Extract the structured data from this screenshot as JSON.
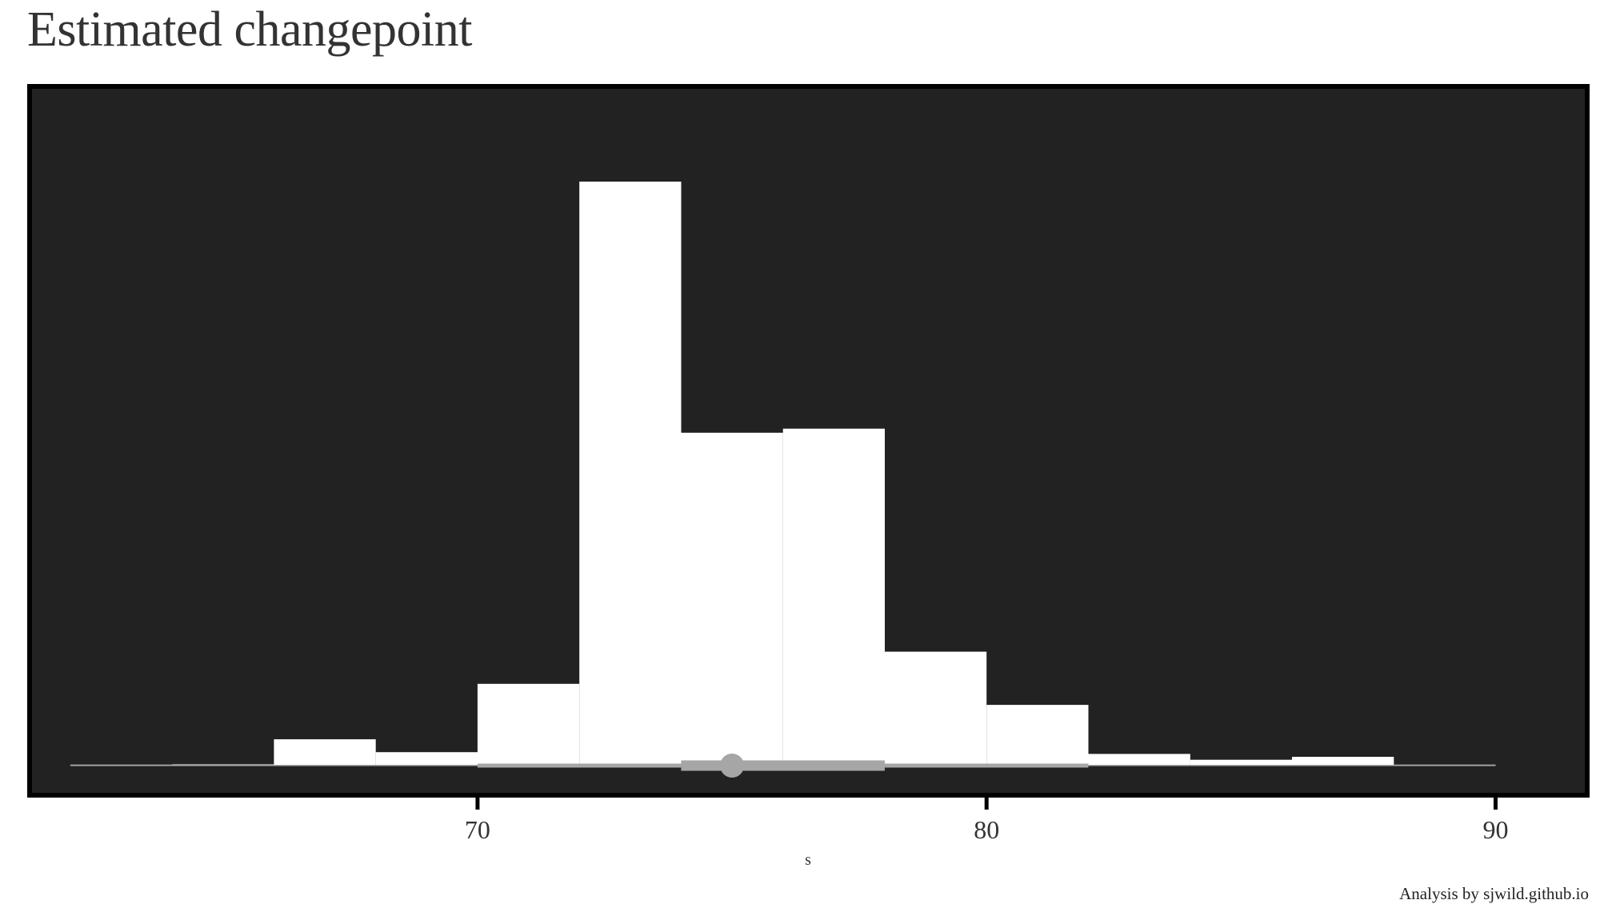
{
  "title": "Estimated changepoint",
  "caption": "Analysis by sjwild.github.io",
  "colors": {
    "panel_background": "#222222",
    "panel_border": "#000000",
    "bars": "#ffffff",
    "interval": "#a6a6a6",
    "text": "#333333"
  },
  "chart_data": {
    "type": "bar",
    "subtype": "histogram with point-interval",
    "title": "Estimated changepoint",
    "xlabel": "s",
    "ylabel": "",
    "xlim": [
      61.2,
      91.8
    ],
    "ylim": [
      0,
      1.07
    ],
    "x_ticks": [
      70,
      80,
      90
    ],
    "x_tick_labels": [
      "70",
      "80",
      "90"
    ],
    "grid": false,
    "legend": "none",
    "bins": [
      {
        "start": 62,
        "end": 64,
        "value": 0.0
      },
      {
        "start": 64,
        "end": 66,
        "value": 0.002
      },
      {
        "start": 66,
        "end": 68,
        "value": 0.045
      },
      {
        "start": 68,
        "end": 70,
        "value": 0.023
      },
      {
        "start": 70,
        "end": 72,
        "value": 0.14
      },
      {
        "start": 72,
        "end": 74,
        "value": 1.0
      },
      {
        "start": 74,
        "end": 76,
        "value": 0.57
      },
      {
        "start": 76,
        "end": 78,
        "value": 0.577
      },
      {
        "start": 78,
        "end": 80,
        "value": 0.195
      },
      {
        "start": 80,
        "end": 82,
        "value": 0.104
      },
      {
        "start": 82,
        "end": 84,
        "value": 0.02
      },
      {
        "start": 84,
        "end": 86,
        "value": 0.01
      },
      {
        "start": 86,
        "end": 88,
        "value": 0.015
      },
      {
        "start": 88,
        "end": 90,
        "value": 0.0
      }
    ],
    "point_interval": {
      "point": 75,
      "inner": [
        74,
        78
      ],
      "outer": [
        70,
        82
      ]
    }
  }
}
